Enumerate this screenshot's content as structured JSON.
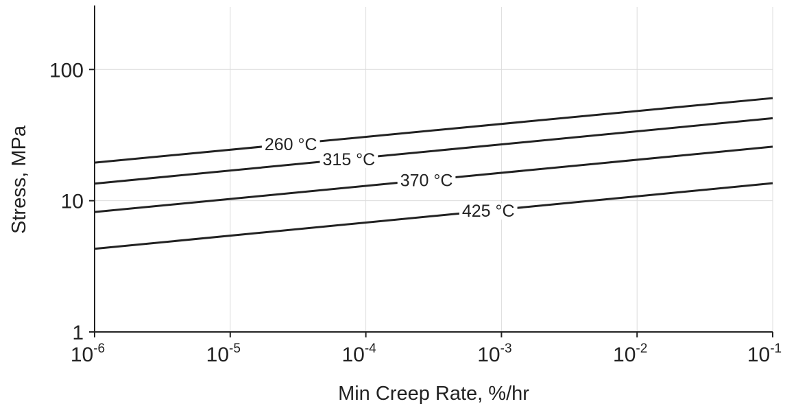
{
  "chart_data": {
    "type": "line",
    "xlabel": "Min Creep Rate, %/hr",
    "ylabel": "Stress, MPa",
    "xscale": "log",
    "yscale": "log",
    "xlim": [
      1e-06,
      0.1
    ],
    "ylim": [
      1,
      300
    ],
    "grid": true,
    "x_ticks": [
      {
        "value": 1e-06,
        "base": "10",
        "exp": "-6"
      },
      {
        "value": 1e-05,
        "base": "10",
        "exp": "-5"
      },
      {
        "value": 0.0001,
        "base": "10",
        "exp": "-4"
      },
      {
        "value": 0.001,
        "base": "10",
        "exp": "-3"
      },
      {
        "value": 0.01,
        "base": "10",
        "exp": "-2"
      },
      {
        "value": 0.1,
        "base": "10",
        "exp": "-1"
      }
    ],
    "y_ticks": [
      {
        "value": 1,
        "label": "1"
      },
      {
        "value": 10,
        "label": "10"
      },
      {
        "value": 100,
        "label": "100"
      }
    ],
    "series": [
      {
        "name": "260 °C",
        "x": [
          1e-06,
          0.1
        ],
        "y": [
          19.5,
          60.5
        ],
        "label_x": 2.8e-05
      },
      {
        "name": "315 °C",
        "x": [
          1e-06,
          0.1
        ],
        "y": [
          13.5,
          42.5
        ],
        "label_x": 7.5e-05
      },
      {
        "name": "370 °C",
        "x": [
          1e-06,
          0.1
        ],
        "y": [
          8.2,
          25.8
        ],
        "label_x": 0.00028
      },
      {
        "name": "425 °C",
        "x": [
          1e-06,
          0.1
        ],
        "y": [
          4.3,
          13.6
        ],
        "label_x": 0.0008
      }
    ]
  }
}
